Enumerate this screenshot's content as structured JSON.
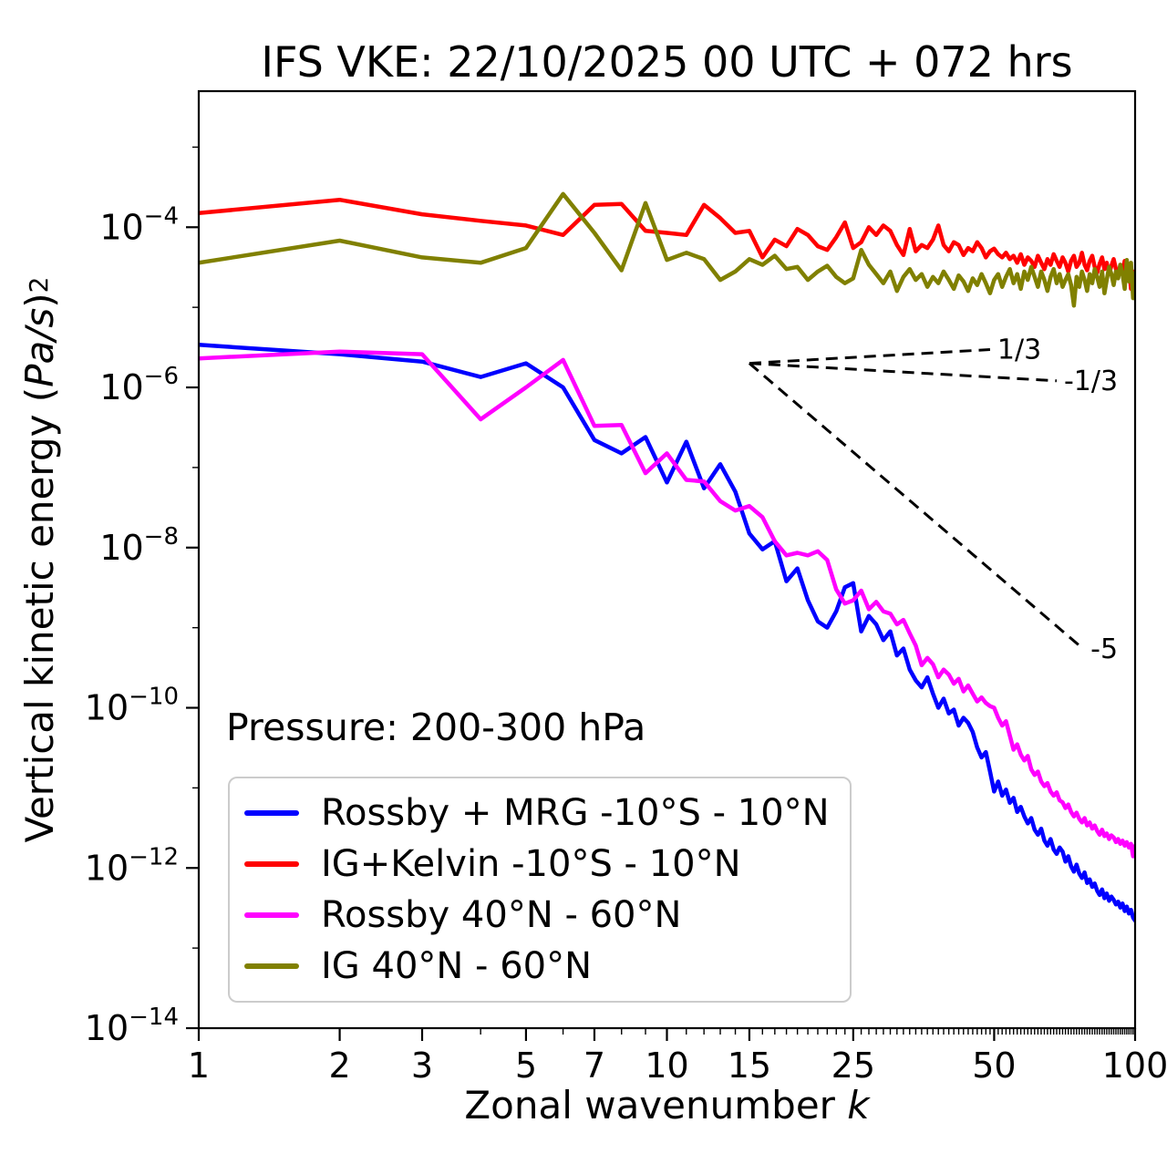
{
  "title": "IFS VKE: 22/10/2025 00 UTC + 072 hrs",
  "annotations": {
    "pressure": "Pressure: 200-300 hPa"
  },
  "axes": {
    "x": {
      "label_prefix": "Zonal wavenumber ",
      "label_italic": "k"
    },
    "y": {
      "label_prefix": "Vertical kinetic energy (",
      "label_italic": "Pa/s",
      "label_suffix": ")",
      "label_superscript": "2"
    }
  },
  "chart_data": {
    "type": "line",
    "title": "IFS VKE: 22/10/2025 00 UTC + 072 hrs",
    "xlabel": "Zonal wavenumber k",
    "ylabel": "Vertical kinetic energy (Pa/s)^2",
    "xscale": "log",
    "yscale": "log",
    "xlim": [
      1,
      100
    ],
    "ylim": [
      1e-14,
      0.005
    ],
    "grid": false,
    "legend_position": "lower left",
    "x_major_ticks": [
      1,
      2,
      3,
      5,
      7,
      10,
      15,
      25,
      50,
      100
    ],
    "y_tick_exponents": [
      -4,
      -6,
      -8,
      -10,
      -12,
      -14
    ],
    "y_minor_tick_exponents": [
      -3,
      -5,
      -7,
      -9,
      -11,
      -13
    ],
    "x": [
      1,
      2,
      3,
      4,
      5,
      6,
      7,
      8,
      9,
      10,
      11,
      12,
      13,
      14,
      15,
      16,
      17,
      18,
      19,
      20,
      21,
      22,
      23,
      24,
      25,
      26,
      27,
      28,
      29,
      30,
      31,
      32,
      33,
      34,
      35,
      36,
      37,
      38,
      39,
      40,
      41,
      42,
      43,
      44,
      45,
      46,
      47,
      48,
      49,
      50,
      51,
      52,
      53,
      54,
      55,
      56,
      57,
      58,
      59,
      60,
      61,
      62,
      63,
      64,
      65,
      66,
      67,
      68,
      69,
      70,
      71,
      72,
      73,
      74,
      75,
      76,
      77,
      78,
      79,
      80,
      81,
      82,
      83,
      84,
      85,
      86,
      87,
      88,
      89,
      90,
      91,
      92,
      93,
      94,
      95,
      96,
      97,
      98,
      99,
      100
    ],
    "series": [
      {
        "name": "Rossby + MRG -10°S - 10°N",
        "color": "#0000ff",
        "values": [
          3.4e-06,
          2.6e-06,
          2.1e-06,
          1.35e-06,
          2e-06,
          1e-06,
          2.2e-07,
          1.5e-07,
          2.4e-07,
          6.5e-08,
          2.1e-07,
          5.5e-08,
          1.1e-07,
          5e-08,
          1.5e-08,
          9.5e-09,
          1.2e-08,
          3.8e-09,
          5.5e-09,
          2.2e-09,
          1.2e-09,
          1e-09,
          1.6e-09,
          3.2e-09,
          3.6e-09,
          9e-10,
          1.4e-09,
          1.1e-09,
          7e-10,
          9e-10,
          4.5e-10,
          5.5e-10,
          3e-10,
          2.2e-10,
          1.8e-10,
          2.4e-10,
          1.5e-10,
          1e-10,
          1.3e-10,
          8.5e-11,
          9.5e-11,
          6e-11,
          7.5e-11,
          6.5e-11,
          5e-11,
          3.2e-11,
          2.4e-11,
          2.8e-11,
          1.6e-11,
          9e-12,
          1.2e-11,
          8e-12,
          9.5e-12,
          6.5e-12,
          7.5e-12,
          5e-12,
          5.8e-12,
          4.4e-12,
          3.6e-12,
          4.2e-12,
          3e-12,
          2.6e-12,
          3.1e-12,
          2.2e-12,
          1.9e-12,
          2.3e-12,
          1.7e-12,
          1.5e-12,
          1.8e-12,
          1.6e-12,
          1.2e-12,
          1.4e-12,
          1.05e-12,
          9e-13,
          1.1e-12,
          8.5e-13,
          7.5e-13,
          8.8e-13,
          6.5e-13,
          7.2e-13,
          5.8e-13,
          6.4e-13,
          5.2e-13,
          4.6e-13,
          5.4e-13,
          4.2e-13,
          4.8e-13,
          3.9e-13,
          4.4e-13,
          4e-13,
          3.5e-13,
          3.8e-13,
          3.2e-13,
          3.6e-13,
          2.9e-13,
          3.3e-13,
          2.7e-13,
          3e-13,
          2.4e-13,
          2.2e-13
        ]
      },
      {
        "name": "IG+Kelvin -10°S - 10°N",
        "color": "#ff0000",
        "values": [
          0.00015,
          0.00022,
          0.000145,
          0.00012,
          0.000105,
          8e-05,
          0.00019,
          0.000195,
          9e-05,
          8.5e-05,
          8e-05,
          0.00019,
          0.00013,
          8.5e-05,
          9e-05,
          4.2e-05,
          7e-05,
          5.8e-05,
          9.5e-05,
          8e-05,
          5.8e-05,
          5.2e-05,
          7.5e-05,
          0.000115,
          5.5e-05,
          6.5e-05,
          0.0001,
          8e-05,
          0.000105,
          9e-05,
          6e-05,
          4.5e-05,
          9.5e-05,
          5e-05,
          6e-05,
          5.5e-05,
          7e-05,
          0.000105,
          6e-05,
          5e-05,
          6.5e-05,
          6e-05,
          4.5e-05,
          5.5e-05,
          5e-05,
          6.5e-05,
          5.5e-05,
          4.2e-05,
          5e-05,
          5.4e-05,
          4.6e-05,
          4.2e-05,
          4.8e-05,
          4e-05,
          4.4e-05,
          3.6e-05,
          4.6e-05,
          3.4e-05,
          4.2e-05,
          3.8e-05,
          3.2e-05,
          4.4e-05,
          3.6e-05,
          3e-05,
          4e-05,
          3.4e-05,
          4.6e-05,
          3.8e-05,
          3.2e-05,
          4.2e-05,
          3.6e-05,
          2.8e-05,
          3.8e-05,
          4.4e-05,
          3.2e-05,
          3.6e-05,
          4.8e-05,
          3.4e-05,
          2.9e-05,
          3.8e-05,
          4.4e-05,
          3.2e-05,
          2.7e-05,
          3.5e-05,
          4.2e-05,
          3e-05,
          3.6e-05,
          2.6e-05,
          3.3e-05,
          4e-05,
          3e-05,
          2.4e-05,
          3.4e-05,
          2.8e-05,
          3.8e-05,
          2.5e-05,
          3.2e-05,
          1.7e-05,
          2.8e-05,
          2.6e-05
        ]
      },
      {
        "name": "Rossby 40°N - 60°N",
        "color": "#ff00ff",
        "values": [
          2.3e-06,
          2.8e-06,
          2.6e-06,
          4e-07,
          1e-06,
          2.2e-06,
          3.3e-07,
          3.4e-07,
          8.5e-08,
          1.5e-07,
          7e-08,
          6.7e-08,
          3.8e-08,
          2.9e-08,
          3.3e-08,
          2.4e-08,
          1.2e-08,
          8e-09,
          8.6e-09,
          8e-09,
          9e-09,
          7e-09,
          3e-09,
          2e-09,
          2.2e-09,
          2.9e-09,
          1.7e-09,
          2.1e-09,
          1.6e-09,
          1.5e-09,
          1.1e-09,
          1.25e-09,
          8.5e-10,
          6e-10,
          3.4e-10,
          4.2e-10,
          3.5e-10,
          2.4e-10,
          3e-10,
          2.6e-10,
          2e-10,
          2.3e-10,
          1.6e-10,
          1.9e-10,
          1.5e-10,
          1.2e-10,
          1.35e-10,
          1.15e-10,
          1.05e-10,
          1e-10,
          7.5e-11,
          6e-11,
          6.8e-11,
          4.5e-11,
          3e-11,
          3.5e-11,
          2.6e-11,
          2.2e-11,
          2.5e-11,
          1.7e-11,
          1.45e-11,
          1.6e-11,
          1.2e-11,
          1.05e-11,
          1.15e-11,
          9e-12,
          8e-12,
          8.8e-12,
          7e-12,
          6.6e-12,
          5.6e-12,
          6.2e-12,
          5e-12,
          4.4e-12,
          4.9e-12,
          4.1e-12,
          3.7e-12,
          4.2e-12,
          3.4e-12,
          3.7e-12,
          3.1e-12,
          3.4e-12,
          2.9e-12,
          2.6e-12,
          3e-12,
          2.5e-12,
          2.7e-12,
          2.3e-12,
          2.55e-12,
          2.4e-12,
          2.1e-12,
          2.3e-12,
          2e-12,
          2.2e-12,
          1.9e-12,
          2.1e-12,
          1.8e-12,
          2e-12,
          1.4e-12,
          1.9e-12
        ]
      },
      {
        "name": "IG 40°N - 60°N",
        "color": "#808000",
        "values": [
          3.6e-05,
          6.8e-05,
          4.2e-05,
          3.6e-05,
          5.5e-05,
          0.00026,
          8.5e-05,
          2.9e-05,
          0.0002,
          3.9e-05,
          4.8e-05,
          4e-05,
          2.2e-05,
          2.8e-05,
          4e-05,
          3.4e-05,
          4.4e-05,
          3e-05,
          3.2e-05,
          2.2e-05,
          2.8e-05,
          3.3e-05,
          2.4e-05,
          2e-05,
          2.3e-05,
          5.2e-05,
          3.4e-05,
          2.6e-05,
          2e-05,
          2.8e-05,
          1.6e-05,
          2.4e-05,
          3e-05,
          2.2e-05,
          2.6e-05,
          1.8e-05,
          2.4e-05,
          2e-05,
          2.8e-05,
          2.2e-05,
          1.7e-05,
          2.5e-05,
          2.1e-05,
          1.6e-05,
          2.3e-05,
          1.9e-05,
          2.6e-05,
          2e-05,
          1.5e-05,
          2.2e-05,
          2.6e-05,
          1.8e-05,
          2.4e-05,
          3e-05,
          2e-05,
          2.6e-05,
          1.7e-05,
          2.8e-05,
          2.2e-05,
          3.2e-05,
          2.4e-05,
          1.8e-05,
          2.8e-05,
          2.2e-05,
          1.6e-05,
          2.4e-05,
          3e-05,
          2e-05,
          2.6e-05,
          1.8e-05,
          2.2e-05,
          2.6e-05,
          1.9e-05,
          1.05e-05,
          2.4e-05,
          1.8e-05,
          2.8e-05,
          2.2e-05,
          1.6e-05,
          2.6e-05,
          2e-05,
          3e-05,
          2.4e-05,
          1.8e-05,
          2.8e-05,
          1.5e-05,
          2.2e-05,
          3.2e-05,
          2.6e-05,
          1.9e-05,
          2.8e-05,
          2.3e-05,
          3.4e-05,
          2.6e-05,
          1.7e-05,
          3.9e-05,
          2.1e-05,
          3.6e-05,
          1.3e-05,
          2.7e-05
        ]
      }
    ],
    "reference_lines": [
      {
        "label": "1/3",
        "slope": 0.33333,
        "k_start": 15,
        "k_end": 49,
        "E_start": 2e-06
      },
      {
        "label": "-1/3",
        "slope": -0.33333,
        "k_start": 15,
        "k_end": 68,
        "E_start": 2e-06
      },
      {
        "label": "-5",
        "slope": -5,
        "k_start": 15,
        "k_end": 77.5,
        "E_start": 2e-06
      }
    ]
  }
}
